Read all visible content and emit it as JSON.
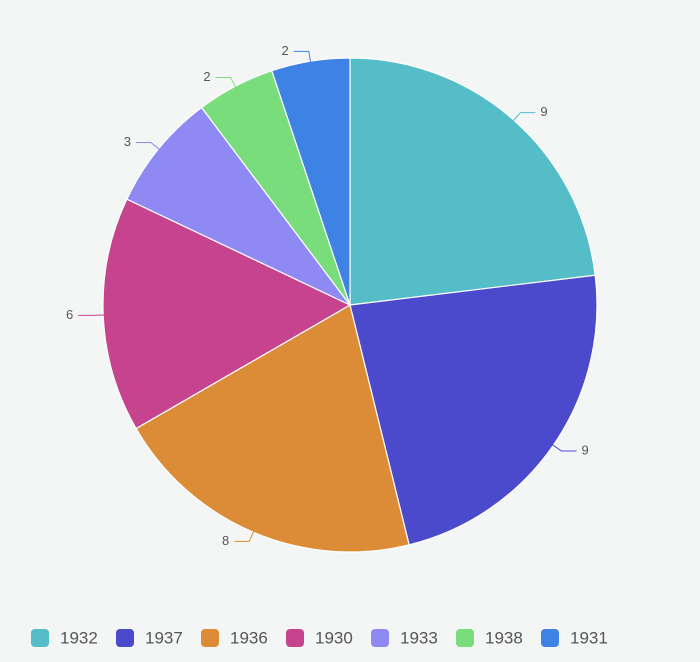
{
  "chart_data": {
    "type": "pie",
    "categories": [
      "1932",
      "1937",
      "1936",
      "1930",
      "1933",
      "1938",
      "1931"
    ],
    "values": [
      9,
      9,
      8,
      6,
      3,
      2,
      2
    ],
    "colors": [
      "#55bdc8",
      "#4b49cc",
      "#dc8b37",
      "#c6448e",
      "#8f8af3",
      "#79dd7b",
      "#3f82e5"
    ]
  }
}
